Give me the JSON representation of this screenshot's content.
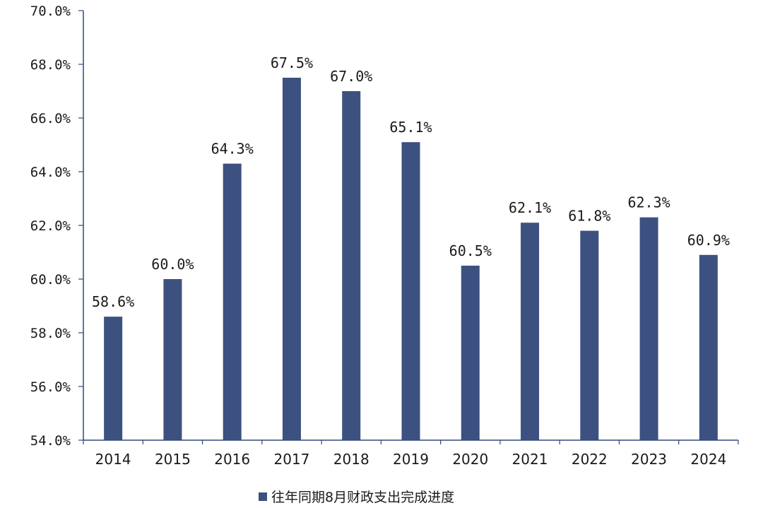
{
  "chart_data": {
    "type": "bar",
    "categories": [
      "2014",
      "2015",
      "2016",
      "2017",
      "2018",
      "2019",
      "2020",
      "2021",
      "2022",
      "2023",
      "2024"
    ],
    "series": [
      {
        "name": "往年同期8月财政支出完成进度",
        "values": [
          58.6,
          60.0,
          64.3,
          67.5,
          67.0,
          65.1,
          60.5,
          62.1,
          61.8,
          62.3,
          60.9
        ],
        "data_labels": [
          "58.6%",
          "60.0%",
          "64.3%",
          "67.5%",
          "67.0%",
          "65.1%",
          "60.5%",
          "62.1%",
          "61.8%",
          "62.3%",
          "60.9%"
        ]
      }
    ],
    "ylim": [
      54.0,
      70.0
    ],
    "yticks": [
      54.0,
      56.0,
      58.0,
      60.0,
      62.0,
      64.0,
      66.0,
      68.0,
      70.0
    ],
    "ytick_labels": [
      "54.0%",
      "56.0%",
      "58.0%",
      "60.0%",
      "62.0%",
      "64.0%",
      "66.0%",
      "68.0%",
      "70.0%"
    ],
    "grid": false,
    "legend_position": "bottom-center",
    "colors": {
      "bar": "#3D5180",
      "axis": "#2E4A7D"
    }
  }
}
